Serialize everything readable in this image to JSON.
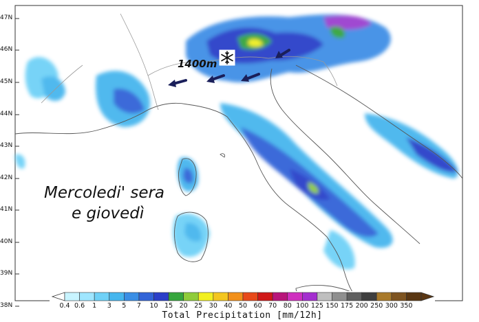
{
  "map": {
    "lat_labels": [
      "47N",
      "46N",
      "45N",
      "44N",
      "43N",
      "42N",
      "41N",
      "40N",
      "39N",
      "38N"
    ],
    "annotations": {
      "snow_label": "1400m",
      "title_line1": "Mercoledi' sera",
      "title_line2": "e giovedì"
    },
    "arrow_color": "#1a1f5a",
    "colors": {
      "land_bg": "#ffffff",
      "coast_line": "#555555",
      "border_line": "#aaaaaa"
    }
  },
  "legend": {
    "title": "Total Precipitation [mm/12h]",
    "levels": [
      "0.4",
      "0.6",
      "1",
      "3",
      "5",
      "7",
      "10",
      "15",
      "20",
      "25",
      "30",
      "40",
      "50",
      "60",
      "70",
      "80",
      "100",
      "125",
      "150",
      "175",
      "200",
      "250",
      "300",
      "350"
    ],
    "colors": [
      "#c8f4ff",
      "#9fe6ff",
      "#6fd1f7",
      "#46b6ee",
      "#3a8ee5",
      "#3264d8",
      "#2b3fc9",
      "#36a53d",
      "#8fcc3a",
      "#f2f020",
      "#f4c61f",
      "#f2901a",
      "#e84a1a",
      "#d01818",
      "#b8157a",
      "#cf2fbf",
      "#a42fcf",
      "#bfbfbf",
      "#8f8f8f",
      "#5f5f5f",
      "#3f3f3f",
      "#a97a2b",
      "#7e5421",
      "#5a3713"
    ]
  }
}
